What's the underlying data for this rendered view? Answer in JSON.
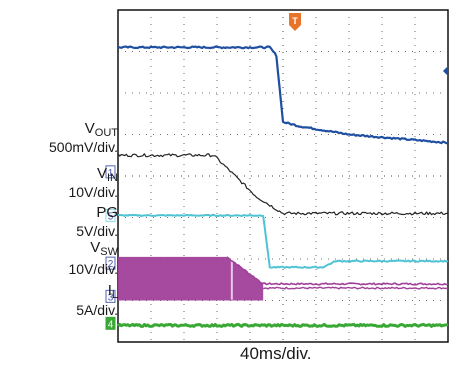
{
  "chart_data": {
    "type": "line",
    "title": "",
    "timebase": "40ms/div.",
    "grid": true,
    "horizontal_divisions": 10,
    "vertical_divisions": 8,
    "trigger_marker": "T",
    "channels": [
      {
        "id": "1",
        "name": "VOUT",
        "name_main": "V",
        "name_sub": "OUT",
        "scale": "500mV/div.",
        "color": "#222222"
      },
      {
        "id": "2",
        "name": "PG",
        "name_main": "PG",
        "name_sub": "",
        "scale": "5V/div.",
        "color": "#a0409a"
      },
      {
        "id": "3",
        "name": "VSW",
        "name_main": "V",
        "name_sub": "SW",
        "scale": "10V/div.",
        "color": "#a0409a"
      },
      {
        "id": "4",
        "name": "IL",
        "name_main": "I",
        "name_sub": "L",
        "scale": "5A/div.",
        "color": "#3aa835"
      },
      {
        "id": "5",
        "name": "VIN",
        "name_main": "V",
        "name_sub": "IN",
        "scale": "10V/div.",
        "color": "#4fc3d4"
      }
    ],
    "unlabeled_trace": {
      "color": "#1f4fa0",
      "points_div": [
        [
          0,
          7.1
        ],
        [
          4.6,
          7.1
        ],
        [
          4.8,
          6.9
        ],
        [
          5.0,
          5.3
        ],
        [
          5.5,
          5.2
        ],
        [
          7.0,
          5.0
        ],
        [
          8.5,
          4.9
        ],
        [
          10,
          4.8
        ]
      ]
    },
    "vout_points_div": [
      [
        0,
        4.5
      ],
      [
        2.9,
        4.5
      ],
      [
        4.2,
        3.5
      ],
      [
        5.0,
        3.1
      ],
      [
        10,
        3.1
      ]
    ],
    "vin_points_div": [
      [
        0,
        3.05
      ],
      [
        4.4,
        3.05
      ],
      [
        4.6,
        1.8
      ],
      [
        6.2,
        1.8
      ],
      [
        6.6,
        1.95
      ],
      [
        10,
        1.95
      ]
    ],
    "pg_high_div": 2.05,
    "pg_points_div": [
      [
        0,
        2.05
      ],
      [
        3.3,
        2.05
      ],
      [
        4.4,
        1.4
      ],
      [
        10,
        1.4
      ]
    ],
    "vsw_points_div": [
      [
        0,
        1.0
      ],
      [
        4.4,
        1.0
      ],
      [
        4.4,
        1.3
      ],
      [
        10,
        1.3
      ]
    ],
    "il_points_div": [
      [
        0,
        0.4
      ],
      [
        10,
        0.4
      ]
    ]
  }
}
